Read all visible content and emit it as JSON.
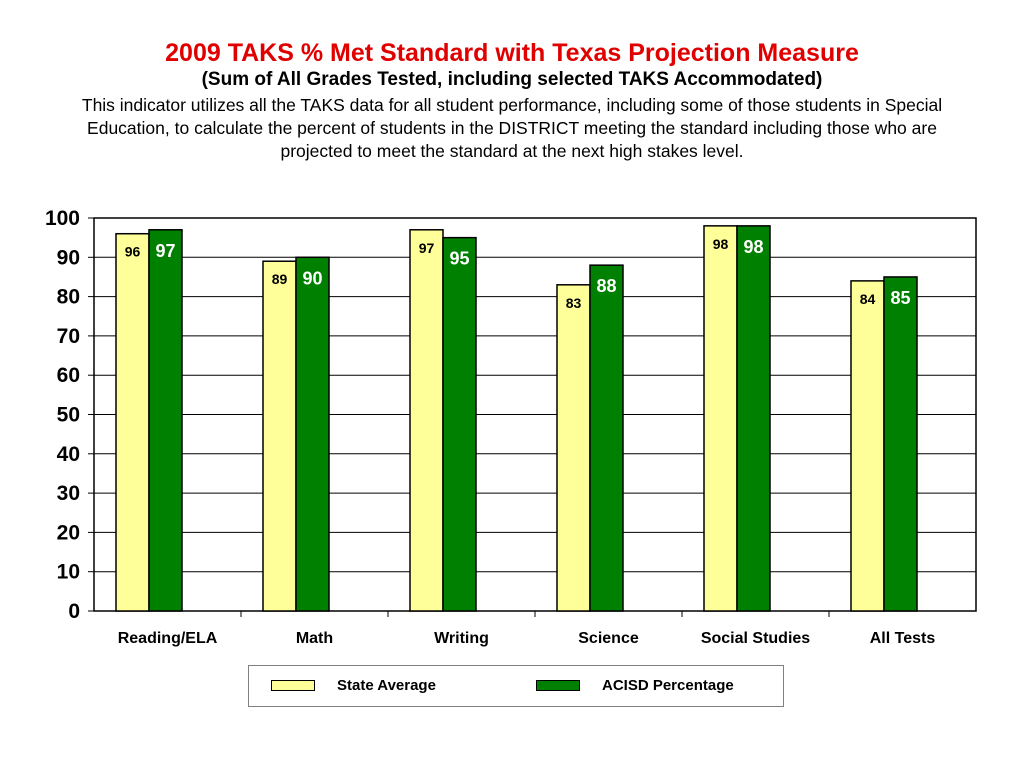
{
  "chart_data": {
    "type": "bar",
    "title": "2009 TAKS % Met Standard with Texas Projection Measure",
    "subtitle": "(Sum of All Grades Tested, including selected TAKS Accommodated)",
    "description": "This indicator utilizes all the TAKS data for all student performance, including some of those students in Special Education, to calculate the percent of students in the DISTRICT meeting the standard including those who are projected to meet the standard at the next high stakes level.",
    "categories": [
      "Reading/ELA",
      "Math",
      "Writing",
      "Science",
      "Social Studies",
      "All Tests"
    ],
    "series": [
      {
        "name": "State Average",
        "values": [
          96,
          89,
          97,
          83,
          98,
          84
        ],
        "color": "#ffff99",
        "label_color": "#000000"
      },
      {
        "name": "ACISD Percentage",
        "values": [
          97,
          90,
          95,
          88,
          98,
          85
        ],
        "color": "#008000",
        "label_color": "#ffffff"
      }
    ],
    "ylim": [
      0,
      100
    ],
    "yticks": [
      0,
      10,
      20,
      30,
      40,
      50,
      60,
      70,
      80,
      90,
      100
    ],
    "grid": true,
    "legend_position": "bottom"
  }
}
